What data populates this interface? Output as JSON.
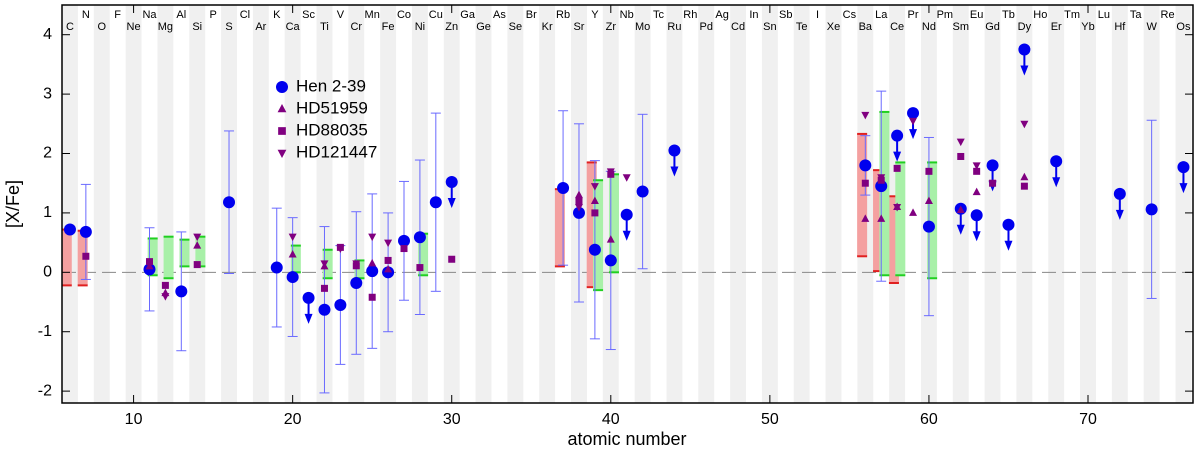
{
  "chart_data": {
    "type": "scatter",
    "xlabel": "atomic number",
    "ylabel": "[X/Fe]",
    "xlim": [
      5.5,
      76.6
    ],
    "ylim": [
      -2.2,
      4.5
    ],
    "xticks": [
      10,
      20,
      30,
      40,
      50,
      60,
      70
    ],
    "yticks": [
      -2,
      -1,
      0,
      1,
      2,
      3,
      4
    ],
    "elements": [
      {
        "z": 6,
        "symbol": "C"
      },
      {
        "z": 7,
        "symbol": "N"
      },
      {
        "z": 8,
        "symbol": "O"
      },
      {
        "z": 9,
        "symbol": "F"
      },
      {
        "z": 10,
        "symbol": "Ne"
      },
      {
        "z": 11,
        "symbol": "Na"
      },
      {
        "z": 12,
        "symbol": "Mg"
      },
      {
        "z": 13,
        "symbol": "Al"
      },
      {
        "z": 14,
        "symbol": "Si"
      },
      {
        "z": 15,
        "symbol": "P"
      },
      {
        "z": 16,
        "symbol": "S"
      },
      {
        "z": 17,
        "symbol": "Cl"
      },
      {
        "z": 18,
        "symbol": "Ar"
      },
      {
        "z": 19,
        "symbol": "K"
      },
      {
        "z": 20,
        "symbol": "Ca"
      },
      {
        "z": 21,
        "symbol": "Sc"
      },
      {
        "z": 22,
        "symbol": "Ti"
      },
      {
        "z": 23,
        "symbol": "V"
      },
      {
        "z": 24,
        "symbol": "Cr"
      },
      {
        "z": 25,
        "symbol": "Mn"
      },
      {
        "z": 26,
        "symbol": "Fe"
      },
      {
        "z": 27,
        "symbol": "Co"
      },
      {
        "z": 28,
        "symbol": "Ni"
      },
      {
        "z": 29,
        "symbol": "Cu"
      },
      {
        "z": 30,
        "symbol": "Zn"
      },
      {
        "z": 31,
        "symbol": "Ga"
      },
      {
        "z": 32,
        "symbol": "Ge"
      },
      {
        "z": 33,
        "symbol": "As"
      },
      {
        "z": 34,
        "symbol": "Se"
      },
      {
        "z": 35,
        "symbol": "Br"
      },
      {
        "z": 36,
        "symbol": "Kr"
      },
      {
        "z": 37,
        "symbol": "Rb"
      },
      {
        "z": 38,
        "symbol": "Sr"
      },
      {
        "z": 39,
        "symbol": "Y"
      },
      {
        "z": 40,
        "symbol": "Zr"
      },
      {
        "z": 41,
        "symbol": "Nb"
      },
      {
        "z": 42,
        "symbol": "Mo"
      },
      {
        "z": 43,
        "symbol": "Tc"
      },
      {
        "z": 44,
        "symbol": "Ru"
      },
      {
        "z": 45,
        "symbol": "Rh"
      },
      {
        "z": 46,
        "symbol": "Pd"
      },
      {
        "z": 47,
        "symbol": "Ag"
      },
      {
        "z": 48,
        "symbol": "Cd"
      },
      {
        "z": 49,
        "symbol": "In"
      },
      {
        "z": 50,
        "symbol": "Sn"
      },
      {
        "z": 51,
        "symbol": "Sb"
      },
      {
        "z": 52,
        "symbol": "Te"
      },
      {
        "z": 53,
        "symbol": "I"
      },
      {
        "z": 54,
        "symbol": "Xe"
      },
      {
        "z": 55,
        "symbol": "Cs"
      },
      {
        "z": 56,
        "symbol": "Ba"
      },
      {
        "z": 57,
        "symbol": "La"
      },
      {
        "z": 58,
        "symbol": "Ce"
      },
      {
        "z": 59,
        "symbol": "Pr"
      },
      {
        "z": 60,
        "symbol": "Nd"
      },
      {
        "z": 61,
        "symbol": "Pm"
      },
      {
        "z": 62,
        "symbol": "Sm"
      },
      {
        "z": 63,
        "symbol": "Eu"
      },
      {
        "z": 64,
        "symbol": "Gd"
      },
      {
        "z": 65,
        "symbol": "Tb"
      },
      {
        "z": 66,
        "symbol": "Dy"
      },
      {
        "z": 67,
        "symbol": "Ho"
      },
      {
        "z": 68,
        "symbol": "Er"
      },
      {
        "z": 69,
        "symbol": "Tm"
      },
      {
        "z": 70,
        "symbol": "Yb"
      },
      {
        "z": 71,
        "symbol": "Lu"
      },
      {
        "z": 72,
        "symbol": "Hf"
      },
      {
        "z": 73,
        "symbol": "Ta"
      },
      {
        "z": 74,
        "symbol": "W"
      },
      {
        "z": 75,
        "symbol": "Re"
      },
      {
        "z": 76,
        "symbol": "Os"
      }
    ],
    "ranges": [
      {
        "color": "#f4a0a0",
        "x": [
          6,
          7,
          37,
          39,
          56,
          57,
          58
        ],
        "low": [
          -0.22,
          -0.22,
          0.1,
          -0.25,
          0.27,
          0.02,
          -0.18
        ],
        "high": [
          0.72,
          0.7,
          1.4,
          1.85,
          2.33,
          1.72,
          1.28
        ]
      },
      {
        "color": "#a8f0a8",
        "x": [
          11,
          12,
          13,
          14,
          20,
          22,
          24,
          28,
          39,
          40,
          57,
          58,
          60
        ],
        "low": [
          -0.05,
          -0.1,
          0.1,
          0.1,
          0.0,
          -0.1,
          -0.1,
          -0.05,
          -0.3,
          0.0,
          -0.05,
          -0.05,
          -0.1
        ],
        "high": [
          0.57,
          0.6,
          0.55,
          0.6,
          0.45,
          0.38,
          0.2,
          0.65,
          1.55,
          1.65,
          2.7,
          1.85,
          1.85
        ]
      }
    ],
    "series": [
      {
        "name": "Hen 2-39",
        "color": "#0000ee",
        "marker": "circle",
        "x": [
          6,
          7,
          11,
          13,
          16,
          19,
          20,
          21,
          22,
          23,
          24,
          25,
          26,
          27,
          28,
          29,
          30,
          37,
          38,
          39,
          40,
          41,
          42,
          44,
          56,
          57,
          58,
          59,
          60,
          62,
          63,
          64,
          65,
          66,
          68,
          72,
          74,
          76
        ],
        "values": [
          0.72,
          0.68,
          0.05,
          -0.32,
          1.18,
          0.08,
          -0.08,
          -0.43,
          -0.63,
          -0.55,
          -0.18,
          0.02,
          0.0,
          0.53,
          0.59,
          1.18,
          1.52,
          1.42,
          1.0,
          0.38,
          0.2,
          0.97,
          1.36,
          2.05,
          1.8,
          1.45,
          2.3,
          2.68,
          0.77,
          1.07,
          0.96,
          1.8,
          0.8,
          3.75,
          1.87,
          1.32,
          1.06,
          1.77
        ],
        "errors": [
          null,
          0.8,
          0.7,
          1.0,
          1.2,
          1.0,
          1.0,
          null,
          1.4,
          1.0,
          1.2,
          1.3,
          1.0,
          1.0,
          1.3,
          1.5,
          null,
          1.3,
          1.5,
          1.5,
          1.5,
          null,
          1.3,
          null,
          0.5,
          1.6,
          null,
          null,
          1.5,
          null,
          null,
          null,
          null,
          null,
          null,
          null,
          1.5,
          null
        ],
        "upper_limits": [
          false,
          false,
          false,
          false,
          false,
          false,
          false,
          true,
          false,
          false,
          false,
          false,
          false,
          false,
          false,
          false,
          true,
          false,
          false,
          false,
          false,
          true,
          false,
          true,
          false,
          false,
          true,
          true,
          false,
          true,
          true,
          true,
          true,
          true,
          true,
          true,
          false,
          true
        ]
      },
      {
        "name": "HD51959",
        "color": "#800080",
        "marker": "triangle-up",
        "x": [
          11,
          12,
          14,
          20,
          22,
          25,
          26,
          38,
          39,
          40,
          56,
          57,
          58,
          59,
          60,
          62,
          63,
          66
        ],
        "values": [
          0.1,
          -0.35,
          0.45,
          0.3,
          0.1,
          0.15,
          0.05,
          1.3,
          1.2,
          0.55,
          0.9,
          0.9,
          1.1,
          1.0,
          1.2,
          1.05,
          1.35,
          1.6
        ]
      },
      {
        "name": "HD88035",
        "color": "#800080",
        "marker": "square",
        "x": [
          7,
          11,
          12,
          14,
          22,
          23,
          24,
          25,
          26,
          27,
          28,
          30,
          38,
          39,
          40,
          56,
          57,
          58,
          60,
          62,
          63,
          64,
          66
        ],
        "values": [
          0.27,
          0.18,
          -0.22,
          0.13,
          -0.27,
          0.42,
          0.11,
          -0.42,
          0.2,
          0.4,
          0.08,
          0.22,
          1.2,
          1.0,
          1.65,
          1.5,
          1.55,
          1.75,
          1.7,
          1.95,
          1.7,
          1.5,
          1.45
        ]
      },
      {
        "name": "HD121447",
        "color": "#800080",
        "marker": "triangle-down",
        "x": [
          12,
          14,
          20,
          22,
          23,
          24,
          25,
          26,
          38,
          39,
          40,
          41,
          56,
          57,
          58,
          59,
          62,
          63,
          64,
          66
        ],
        "values": [
          -0.4,
          0.6,
          0.6,
          0.15,
          0.4,
          0.15,
          0.6,
          0.5,
          1.1,
          1.45,
          1.7,
          1.6,
          2.65,
          1.6,
          1.1,
          2.55,
          2.2,
          1.8,
          1.5,
          2.5
        ]
      }
    ]
  }
}
